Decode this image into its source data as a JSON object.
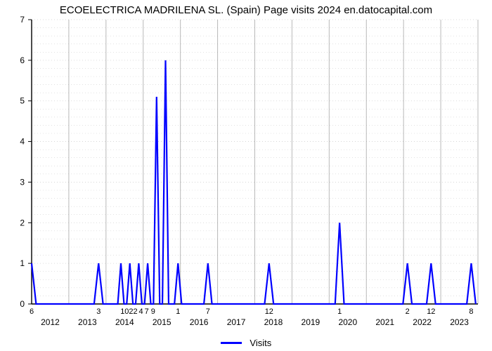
{
  "chart": {
    "type": "line",
    "title": "ECOELECTRICA MADRILENA SL. (Spain) Page visits 2024 en.datocapital.com",
    "title_fontsize": 15,
    "title_color": "#000000",
    "background_color": "#ffffff",
    "plot_background": "#ffffff",
    "series": {
      "name": "Visits",
      "color": "#0000ff",
      "line_width": 2.2,
      "legend_label": "Visits"
    },
    "y_axis": {
      "min": 0,
      "max": 7,
      "tick_step": 1,
      "ticks": [
        0,
        1,
        2,
        3,
        4,
        5,
        6,
        7
      ],
      "grid_minor": true,
      "grid_minor_color": "#d0d0d0",
      "grid_minor_style": "dotted",
      "label_fontsize": 12,
      "label_color": "#000000",
      "axis_line_color": "#000000"
    },
    "x_axis": {
      "year_start": 2012,
      "year_end": 2023,
      "year_labels": [
        "2012",
        "2013",
        "2014",
        "2015",
        "2016",
        "2017",
        "2018",
        "2019",
        "2020",
        "2021",
        "2022",
        "2023"
      ],
      "grid_major_color": "#808080",
      "grid_major_width": 1,
      "label_fontsize": 12,
      "label_color": "#000000",
      "axis_line_color": "#000000",
      "point_labels": [
        {
          "x": 0.0,
          "text": "6"
        },
        {
          "x": 0.15,
          "text": "3"
        },
        {
          "x": 0.218,
          "text": "1022"
        },
        {
          "x": 0.245,
          "text": "4"
        },
        {
          "x": 0.265,
          "text": "7 9"
        },
        {
          "x": 0.328,
          "text": "1"
        },
        {
          "x": 0.395,
          "text": "7"
        },
        {
          "x": 0.532,
          "text": "12"
        },
        {
          "x": 0.69,
          "text": "1"
        },
        {
          "x": 0.842,
          "text": "2"
        },
        {
          "x": 0.895,
          "text": "12"
        },
        {
          "x": 0.985,
          "text": "8"
        }
      ]
    },
    "data_points": [
      {
        "x": 0.0,
        "y": 1.0
      },
      {
        "x": 0.01,
        "y": 0.0
      },
      {
        "x": 0.14,
        "y": 0.0
      },
      {
        "x": 0.15,
        "y": 1.0
      },
      {
        "x": 0.16,
        "y": 0.0
      },
      {
        "x": 0.193,
        "y": 0.0
      },
      {
        "x": 0.2,
        "y": 1.0
      },
      {
        "x": 0.207,
        "y": 0.0
      },
      {
        "x": 0.213,
        "y": 0.0
      },
      {
        "x": 0.22,
        "y": 1.0
      },
      {
        "x": 0.227,
        "y": 0.0
      },
      {
        "x": 0.233,
        "y": 0.0
      },
      {
        "x": 0.24,
        "y": 1.0
      },
      {
        "x": 0.247,
        "y": 0.0
      },
      {
        "x": 0.253,
        "y": 0.0
      },
      {
        "x": 0.26,
        "y": 1.0
      },
      {
        "x": 0.267,
        "y": 0.0
      },
      {
        "x": 0.273,
        "y": 0.0
      },
      {
        "x": 0.28,
        "y": 5.1
      },
      {
        "x": 0.287,
        "y": 0.0
      },
      {
        "x": 0.293,
        "y": 0.0
      },
      {
        "x": 0.3,
        "y": 6.0
      },
      {
        "x": 0.307,
        "y": 0.0
      },
      {
        "x": 0.32,
        "y": 0.0
      },
      {
        "x": 0.328,
        "y": 1.0
      },
      {
        "x": 0.336,
        "y": 0.0
      },
      {
        "x": 0.386,
        "y": 0.0
      },
      {
        "x": 0.395,
        "y": 1.0
      },
      {
        "x": 0.404,
        "y": 0.0
      },
      {
        "x": 0.522,
        "y": 0.0
      },
      {
        "x": 0.532,
        "y": 1.0
      },
      {
        "x": 0.542,
        "y": 0.0
      },
      {
        "x": 0.68,
        "y": 0.0
      },
      {
        "x": 0.69,
        "y": 2.0
      },
      {
        "x": 0.7,
        "y": 0.0
      },
      {
        "x": 0.832,
        "y": 0.0
      },
      {
        "x": 0.842,
        "y": 1.0
      },
      {
        "x": 0.852,
        "y": 0.0
      },
      {
        "x": 0.885,
        "y": 0.0
      },
      {
        "x": 0.895,
        "y": 1.0
      },
      {
        "x": 0.905,
        "y": 0.0
      },
      {
        "x": 0.975,
        "y": 0.0
      },
      {
        "x": 0.985,
        "y": 1.0
      },
      {
        "x": 0.995,
        "y": 0.0
      }
    ],
    "legend": {
      "position": "bottom-center",
      "fontsize": 13
    }
  }
}
